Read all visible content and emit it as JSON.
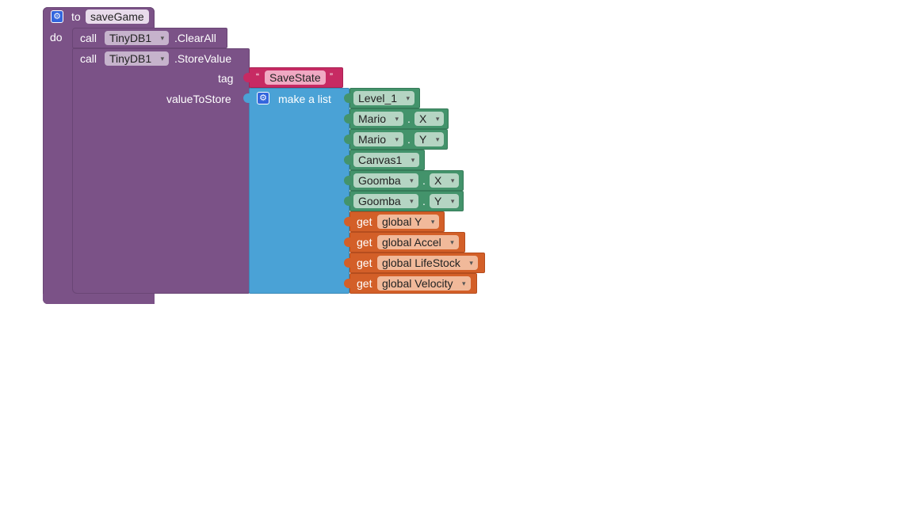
{
  "procedure": {
    "keyword_to": "to",
    "name": "saveGame",
    "keyword_do": "do"
  },
  "clear_block": {
    "call": "call",
    "component": "TinyDB1",
    "method": ".ClearAll"
  },
  "store_block": {
    "call": "call",
    "component": "TinyDB1",
    "method": ".StoreValue",
    "tag_label": "tag",
    "value_label": "valueToStore"
  },
  "tag_text": {
    "open_quote": "“",
    "value": "SaveState",
    "close_quote": "”"
  },
  "list_block": {
    "label": "make a list"
  },
  "list_items": {
    "item1": "Level_1",
    "item2_comp": "Mario",
    "item2_prop": "X",
    "item3_comp": "Mario",
    "item3_prop": "Y",
    "item4": "Canvas1",
    "item5_comp": "Goomba",
    "item5_prop": "X",
    "item6_comp": "Goomba",
    "item6_prop": "Y",
    "get": "get",
    "item7_var": "global Y",
    "item8_var": "global Accel",
    "item9_var": "global LifeStock",
    "item10_var": "global Velocity",
    "dot": "."
  },
  "icons": {
    "dropdown": "▾",
    "gear": "⚙"
  },
  "colors": {
    "procedure": "#7b5287",
    "list": "#4aa2d6",
    "component": "#43936b",
    "variable": "#d35f28",
    "text": "#c72a63"
  }
}
